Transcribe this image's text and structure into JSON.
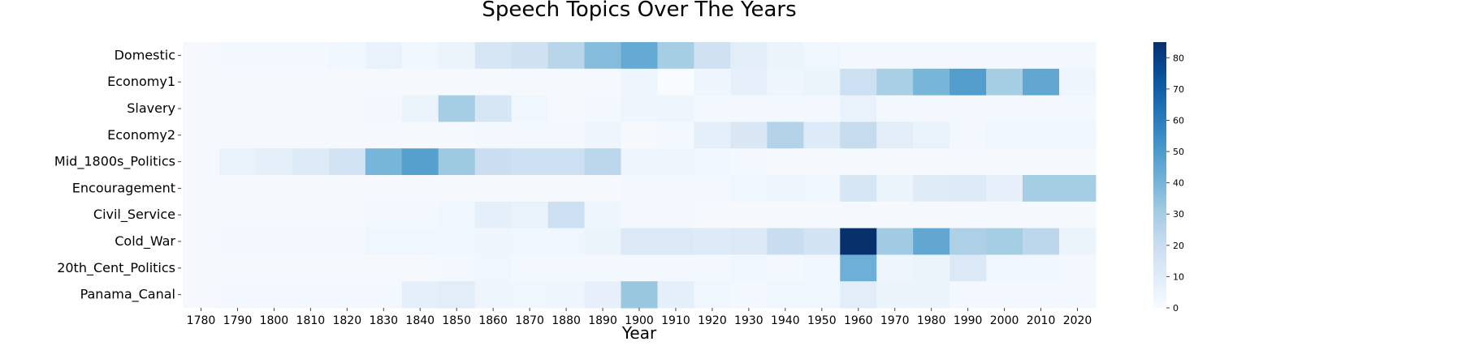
{
  "chart_data": {
    "type": "heatmap",
    "title": "Speech Topics Over The Years",
    "xlabel": "Year",
    "ylabel": "",
    "colormap": "Blues",
    "colorbar": {
      "min": 0,
      "max": 85,
      "ticks": [
        0,
        10,
        20,
        30,
        40,
        50,
        60,
        70,
        80
      ]
    },
    "x": [
      "1780",
      "1790",
      "1800",
      "1810",
      "1820",
      "1830",
      "1840",
      "1850",
      "1860",
      "1870",
      "1880",
      "1890",
      "1900",
      "1910",
      "1920",
      "1930",
      "1940",
      "1950",
      "1960",
      "1970",
      "1980",
      "1990",
      "2000",
      "2010",
      "2020"
    ],
    "y": [
      "Domestic",
      "Economy1",
      "Slavery",
      "Economy2",
      "Mid_1800s_Politics",
      "Encouragement",
      "Civil_Service",
      "Cold_War",
      "20th_Cent_Politics",
      "Panama_Canal"
    ],
    "values": [
      [
        1,
        2,
        2,
        2,
        3,
        6,
        3,
        5,
        14,
        17,
        25,
        37,
        44,
        30,
        17,
        9,
        5,
        3,
        2,
        2,
        2,
        2,
        2,
        2,
        2
      ],
      [
        1,
        1,
        1,
        1,
        1,
        1,
        1,
        1,
        1,
        1,
        1,
        1,
        4,
        0,
        4,
        7,
        4,
        5,
        18,
        29,
        40,
        49,
        30,
        45,
        4
      ],
      [
        1,
        1,
        1,
        1,
        1,
        2,
        5,
        30,
        14,
        3,
        1,
        2,
        4,
        4,
        2,
        2,
        2,
        2,
        6,
        2,
        2,
        2,
        2,
        2,
        2
      ],
      [
        1,
        1,
        1,
        1,
        1,
        1,
        1,
        1,
        2,
        2,
        2,
        4,
        1,
        2,
        8,
        13,
        26,
        11,
        21,
        9,
        6,
        2,
        3,
        3,
        3
      ],
      [
        1,
        6,
        8,
        11,
        16,
        40,
        48,
        32,
        19,
        18,
        18,
        24,
        4,
        4,
        3,
        2,
        1,
        1,
        1,
        1,
        1,
        1,
        1,
        1,
        1
      ],
      [
        1,
        1,
        1,
        1,
        1,
        1,
        1,
        1,
        1,
        1,
        1,
        1,
        2,
        2,
        2,
        3,
        4,
        3,
        14,
        5,
        10,
        11,
        7,
        30,
        30
      ],
      [
        1,
        1,
        1,
        1,
        1,
        2,
        2,
        3,
        8,
        6,
        18,
        4,
        2,
        2,
        1,
        1,
        1,
        1,
        1,
        1,
        1,
        1,
        1,
        1,
        1
      ],
      [
        1,
        2,
        2,
        2,
        2,
        3,
        3,
        3,
        4,
        3,
        3,
        5,
        12,
        12,
        11,
        12,
        20,
        16,
        85,
        31,
        45,
        28,
        30,
        24,
        5
      ],
      [
        1,
        1,
        1,
        1,
        1,
        1,
        1,
        2,
        3,
        2,
        2,
        2,
        2,
        2,
        2,
        3,
        2,
        3,
        42,
        4,
        5,
        12,
        3,
        3,
        2
      ],
      [
        1,
        2,
        2,
        2,
        2,
        2,
        8,
        9,
        4,
        3,
        4,
        7,
        33,
        8,
        3,
        2,
        3,
        3,
        9,
        5,
        5,
        2,
        2,
        2,
        2
      ]
    ]
  }
}
